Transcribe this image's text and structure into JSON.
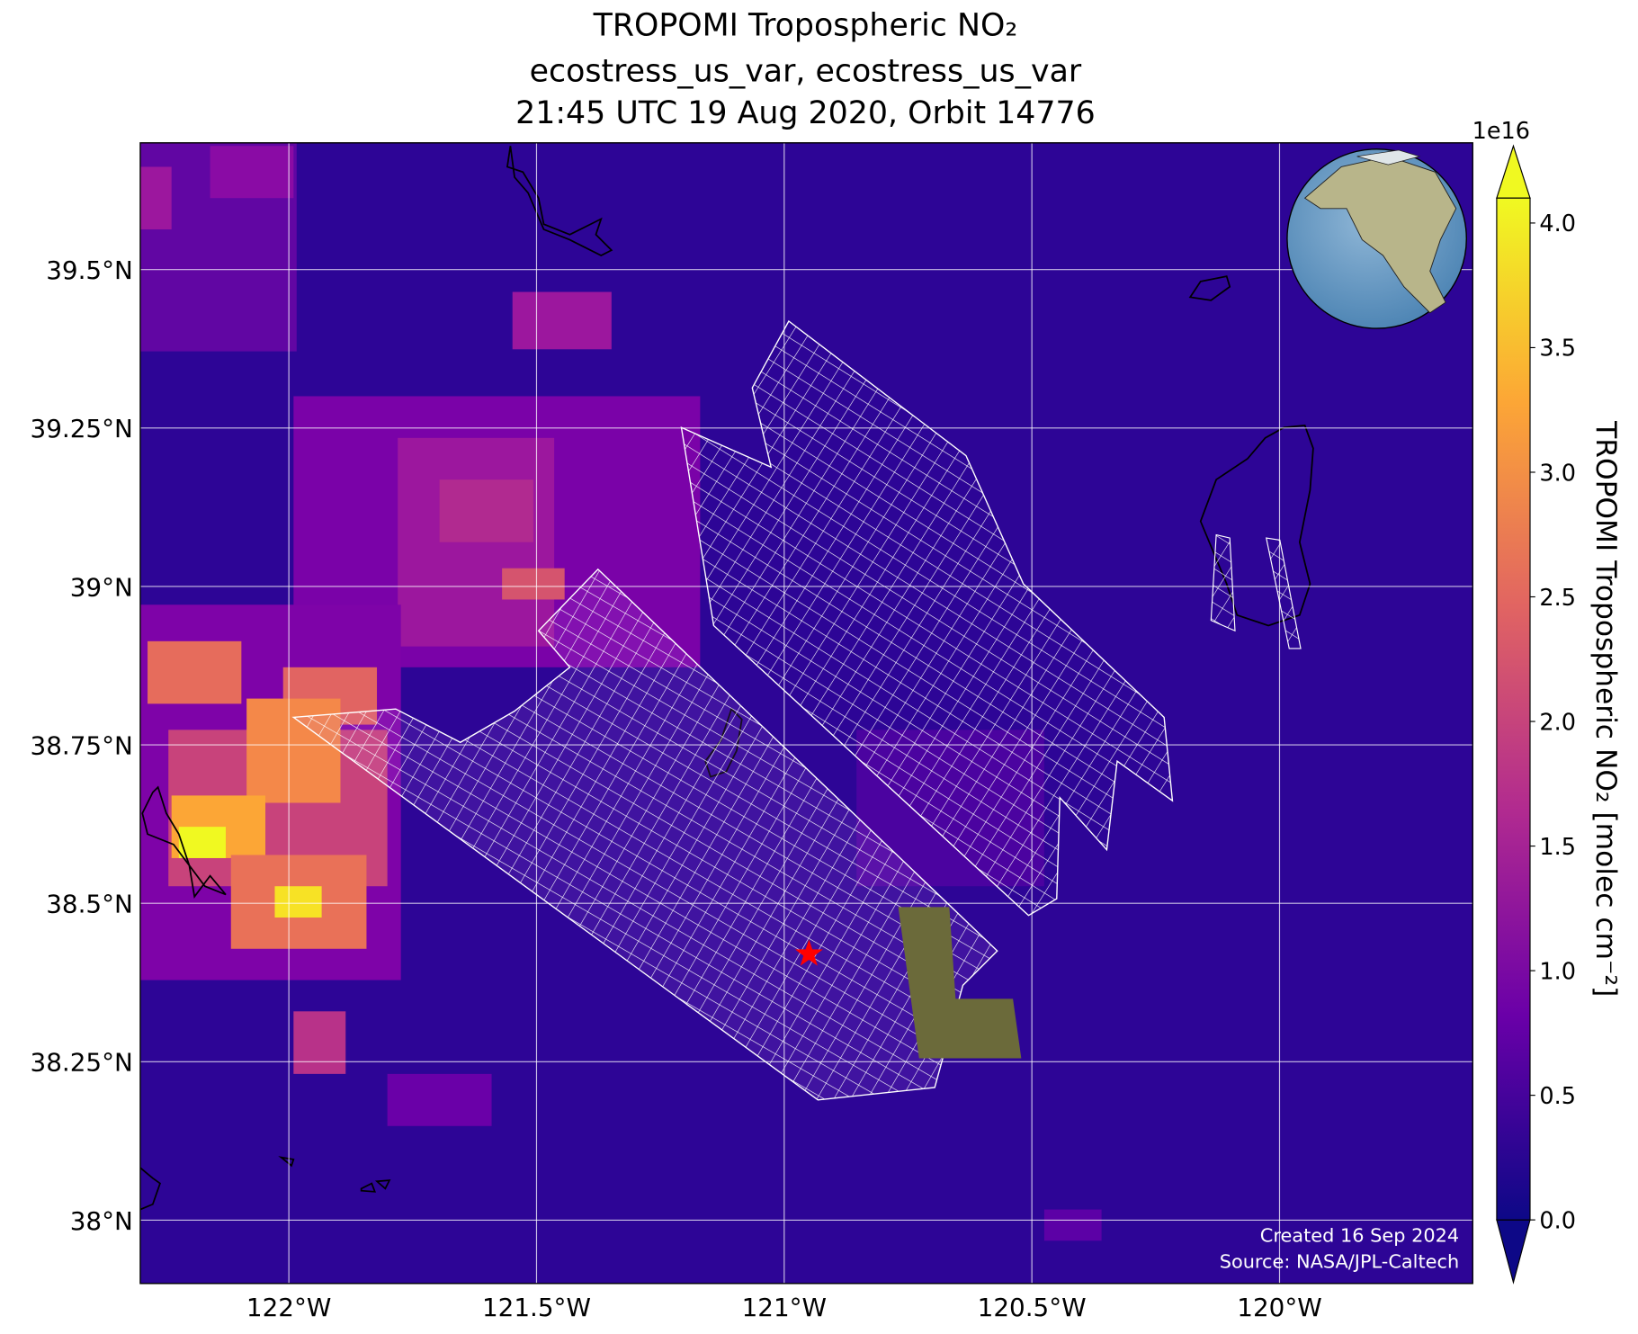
{
  "chart_data": {
    "type": "map",
    "title": "TROPOMI Tropospheric NO₂",
    "subtitle": [
      "ecostress_us_var, ecostress_us_var",
      "21:45 UTC 19 Aug 2020, Orbit 14776"
    ],
    "xlim": [
      -122.3,
      -119.61
    ],
    "ylim": [
      37.9,
      39.7
    ],
    "xticks": [
      {
        "value": -122,
        "label": "122°W"
      },
      {
        "value": -121.5,
        "label": "121.5°W"
      },
      {
        "value": -121,
        "label": "121°W"
      },
      {
        "value": -120.5,
        "label": "120.5°W"
      },
      {
        "value": -120,
        "label": "120°W"
      }
    ],
    "yticks": [
      {
        "value": 38,
        "label": "38°N"
      },
      {
        "value": 38.25,
        "label": "38.25°N"
      },
      {
        "value": 38.5,
        "label": "38.5°N"
      },
      {
        "value": 38.75,
        "label": "38.75°N"
      },
      {
        "value": 39,
        "label": "39°N"
      },
      {
        "value": 39.25,
        "label": "39.25°N"
      },
      {
        "value": 39.5,
        "label": "39.5°N"
      }
    ],
    "grid": true,
    "colorbar": {
      "label": "TROPOMI Tropospheric NO₂ [molec cm⁻²]",
      "exponent": "1e16",
      "clim": [
        0,
        4.1
      ],
      "colors": [
        "#0d0887",
        "#6a00a8",
        "#b12a90",
        "#e16462",
        "#fca636",
        "#f0f921"
      ],
      "ticks": [
        {
          "value": 0,
          "label": "0.0"
        },
        {
          "value": 0.5,
          "label": "0.5"
        },
        {
          "value": 1,
          "label": "1.0"
        },
        {
          "value": 1.5,
          "label": "1.5"
        },
        {
          "value": 2,
          "label": "2.0"
        },
        {
          "value": 2.5,
          "label": "2.5"
        },
        {
          "value": 3,
          "label": "3.0"
        },
        {
          "value": 3.5,
          "label": "3.5"
        },
        {
          "value": 4,
          "label": "4.0"
        }
      ]
    },
    "marker": {
      "x": -120.95,
      "y": 38.42,
      "color": "#ff0000"
    },
    "annotations": [
      "Created 16 Sep 2024",
      "Source: NASA/JPL-Caltech"
    ]
  }
}
